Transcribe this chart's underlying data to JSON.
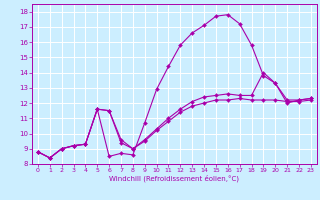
{
  "xlabel": "Windchill (Refroidissement éolien,°C)",
  "bg_color": "#cceeff",
  "line_color": "#aa00aa",
  "grid_color": "#ffffff",
  "line1_x": [
    0,
    1,
    2,
    3,
    4,
    5,
    6,
    7,
    8,
    9,
    10,
    11,
    12,
    13,
    14,
    15,
    16,
    17,
    18,
    19,
    20,
    21,
    22,
    23
  ],
  "line1_y": [
    8.8,
    8.4,
    9.0,
    9.2,
    9.3,
    11.6,
    8.5,
    8.7,
    8.6,
    10.7,
    12.9,
    14.4,
    15.8,
    16.6,
    17.1,
    17.7,
    17.8,
    17.2,
    15.8,
    13.8,
    13.3,
    12.0,
    12.2,
    12.3
  ],
  "line2_x": [
    0,
    1,
    2,
    3,
    4,
    5,
    6,
    7,
    8,
    9,
    10,
    11,
    12,
    13,
    14,
    15,
    16,
    17,
    18,
    19,
    20,
    21,
    22,
    23
  ],
  "line2_y": [
    8.8,
    8.4,
    9.0,
    9.2,
    9.3,
    11.6,
    11.5,
    9.6,
    9.0,
    9.6,
    10.3,
    11.0,
    11.6,
    12.1,
    12.4,
    12.5,
    12.6,
    12.5,
    12.5,
    14.0,
    13.3,
    12.2,
    12.2,
    12.3
  ],
  "line3_x": [
    0,
    1,
    2,
    3,
    4,
    5,
    6,
    7,
    8,
    9,
    10,
    11,
    12,
    13,
    14,
    15,
    16,
    17,
    18,
    19,
    20,
    21,
    22,
    23
  ],
  "line3_y": [
    8.8,
    8.4,
    9.0,
    9.2,
    9.3,
    11.6,
    11.5,
    9.4,
    9.0,
    9.5,
    10.2,
    10.8,
    11.4,
    11.8,
    12.0,
    12.2,
    12.2,
    12.3,
    12.2,
    12.2,
    12.2,
    12.1,
    12.1,
    12.2
  ],
  "xlim": [
    -0.5,
    23.5
  ],
  "ylim": [
    8,
    18.5
  ],
  "yticks": [
    8,
    9,
    10,
    11,
    12,
    13,
    14,
    15,
    16,
    17,
    18
  ],
  "xticks": [
    0,
    1,
    2,
    3,
    4,
    5,
    6,
    7,
    8,
    9,
    10,
    11,
    12,
    13,
    14,
    15,
    16,
    17,
    18,
    19,
    20,
    21,
    22,
    23
  ]
}
